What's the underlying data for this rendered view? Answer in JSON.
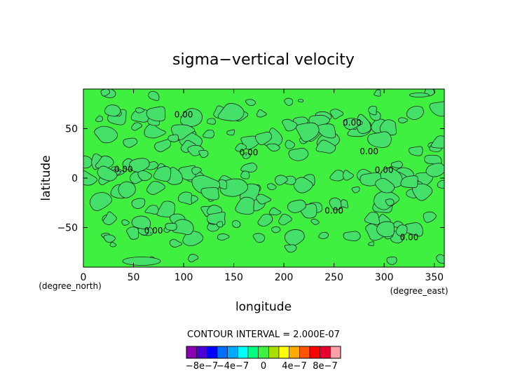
{
  "chart_data": {
    "type": "heatmap",
    "title": "sigma−vertical velocity",
    "xlabel": "longitude",
    "ylabel": "latitude",
    "x_unit": "(degree_east)",
    "y_unit": "(degree_north)",
    "xlim": [
      0,
      360
    ],
    "ylim": [
      -90,
      90
    ],
    "x_ticks": [
      0,
      50,
      100,
      150,
      200,
      250,
      300,
      350
    ],
    "y_ticks": [
      -50,
      0,
      50
    ],
    "y_tick_labels": [
      "−50",
      "0",
      "50"
    ],
    "grid": false,
    "contour_interval_text": "CONTOUR INTERVAL = 2.000E-07",
    "contour_labels": [
      {
        "text": "0.00",
        "lon": 100,
        "lat": 64
      },
      {
        "text": "0.00",
        "lon": 268,
        "lat": 56
      },
      {
        "text": "0.00",
        "lon": 165,
        "lat": 26
      },
      {
        "text": "0.00",
        "lon": 285,
        "lat": 27
      },
      {
        "text": "0.00",
        "lon": 40,
        "lat": 9
      },
      {
        "text": "0.00",
        "lon": 300,
        "lat": 8
      },
      {
        "text": "0.00",
        "lon": 250,
        "lat": -33
      },
      {
        "text": "0.00",
        "lon": 70,
        "lat": -53
      },
      {
        "text": "0.00",
        "lon": 325,
        "lat": -60
      }
    ],
    "colorbar": {
      "colors": [
        "#8a00b4",
        "#4a00d0",
        "#0000ff",
        "#006eff",
        "#00aaff",
        "#00ffff",
        "#00ff80",
        "#40f040",
        "#aadd00",
        "#ffff00",
        "#ffaa00",
        "#ff5500",
        "#ff0000",
        "#e80030",
        "#ff9fa8"
      ],
      "labels": [
        "−8e−7",
        "−4e−7",
        "0",
        "4e−7",
        "8e−7"
      ],
      "label_levels": [
        -8e-07,
        -4e-07,
        0,
        4e-07,
        8e-07
      ]
    }
  }
}
